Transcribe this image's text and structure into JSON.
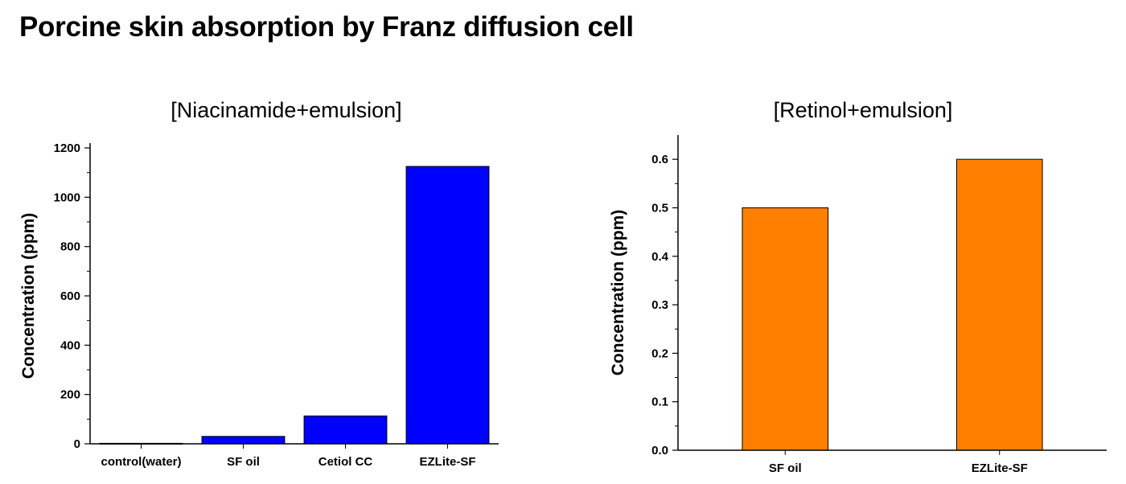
{
  "page": {
    "title": "Porcine skin absorption by Franz diffusion cell"
  },
  "colors": {
    "left_bar": "#0000ff",
    "right_bar": "#ff8000"
  },
  "chart_data": [
    {
      "type": "bar",
      "title": "[Niacinamide+emulsion]",
      "xlabel": "",
      "ylabel": "Concentration (ppm)",
      "categories": [
        "control(water)",
        "SF oil",
        "Cetiol CC",
        "EZLite-SF"
      ],
      "values": [
        2,
        30,
        113,
        1125
      ],
      "ylim": [
        0,
        1200
      ],
      "yticks": [
        0,
        200,
        400,
        600,
        800,
        1000,
        1200
      ],
      "ytick_labels": [
        "0",
        "200",
        "400",
        "600",
        "800",
        "1000",
        "1200"
      ],
      "grid": false,
      "color": "#0000ff"
    },
    {
      "type": "bar",
      "title": "[Retinol+emulsion]",
      "xlabel": "",
      "ylabel": "Concentration (ppm)",
      "categories": [
        "SF oil",
        "EZLite-SF"
      ],
      "values": [
        0.5,
        0.6
      ],
      "ylim": [
        0,
        0.65
      ],
      "yticks": [
        0.0,
        0.1,
        0.2,
        0.3,
        0.4,
        0.5,
        0.6
      ],
      "ytick_labels": [
        "0.0",
        "0.1",
        "0.2",
        "0.3",
        "0.4",
        "0.5",
        "0.6"
      ],
      "grid": false,
      "color": "#ff8000"
    }
  ]
}
